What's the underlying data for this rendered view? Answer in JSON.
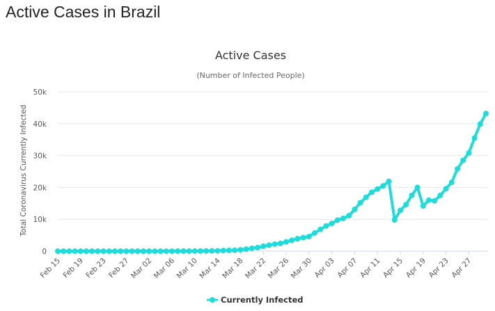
{
  "page": {
    "title": "Active Cases in Brazil"
  },
  "chart_data": {
    "type": "line",
    "title": "Active Cases",
    "subtitle": "(Number of Infected People)",
    "xlabel": "",
    "ylabel": "Total Coronavirus Currently Infected",
    "ylim": [
      0,
      50000
    ],
    "yticks": [
      0,
      10000,
      20000,
      30000,
      40000,
      50000
    ],
    "ytick_labels": [
      "0",
      "10k",
      "20k",
      "30k",
      "40k",
      "50k"
    ],
    "grid": true,
    "legend": "bottom-center",
    "color": "#1fdcdc",
    "categories": [
      "Feb 15",
      "Feb 16",
      "Feb 17",
      "Feb 18",
      "Feb 19",
      "Feb 20",
      "Feb 21",
      "Feb 22",
      "Feb 23",
      "Feb 24",
      "Feb 25",
      "Feb 26",
      "Feb 27",
      "Feb 28",
      "Feb 29",
      "Mar 01",
      "Mar 02",
      "Mar 03",
      "Mar 04",
      "Mar 05",
      "Mar 06",
      "Mar 07",
      "Mar 08",
      "Mar 09",
      "Mar 10",
      "Mar 11",
      "Mar 12",
      "Mar 13",
      "Mar 14",
      "Mar 15",
      "Mar 16",
      "Mar 17",
      "Mar 18",
      "Mar 19",
      "Mar 20",
      "Mar 21",
      "Mar 22",
      "Mar 23",
      "Mar 24",
      "Mar 25",
      "Mar 26",
      "Mar 27",
      "Mar 28",
      "Mar 29",
      "Mar 30",
      "Mar 31",
      "Apr 01",
      "Apr 02",
      "Apr 03",
      "Apr 04",
      "Apr 05",
      "Apr 06",
      "Apr 07",
      "Apr 08",
      "Apr 09",
      "Apr 10",
      "Apr 11",
      "Apr 12",
      "Apr 13",
      "Apr 14",
      "Apr 15",
      "Apr 16",
      "Apr 17",
      "Apr 18",
      "Apr 19",
      "Apr 20",
      "Apr 21",
      "Apr 22",
      "Apr 23",
      "Apr 24",
      "Apr 25",
      "Apr 26",
      "Apr 27",
      "Apr 28",
      "Apr 29",
      "Apr 30"
    ],
    "tick_labels": [
      "Feb 15",
      "Feb 19",
      "Feb 23",
      "Feb 27",
      "Mar 02",
      "Mar 06",
      "Mar 10",
      "Mar 14",
      "Mar 18",
      "Mar 22",
      "Mar 26",
      "Mar 30",
      "Apr 03",
      "Apr 07",
      "Apr 11",
      "Apr 15",
      "Apr 19",
      "Apr 23",
      "Apr 27"
    ],
    "series": [
      {
        "name": "Currently Infected",
        "values": [
          0,
          0,
          0,
          0,
          0,
          0,
          0,
          0,
          0,
          0,
          0,
          1,
          1,
          2,
          2,
          2,
          2,
          2,
          3,
          8,
          13,
          19,
          25,
          25,
          34,
          52,
          77,
          98,
          121,
          200,
          234,
          291,
          428,
          621,
          904,
          1128,
          1546,
          1891,
          2201,
          2433,
          2915,
          3417,
          3904,
          4256,
          4579,
          5717,
          6836,
          7910,
          8716,
          9734,
          10278,
          11130,
          13100,
          15200,
          16900,
          18500,
          19500,
          20500,
          21900,
          9800,
          12800,
          14600,
          17500,
          20000,
          14200,
          16000,
          15800,
          17500,
          19600,
          21600,
          25800,
          28500,
          30800,
          35500,
          39900,
          43200
        ]
      }
    ]
  }
}
